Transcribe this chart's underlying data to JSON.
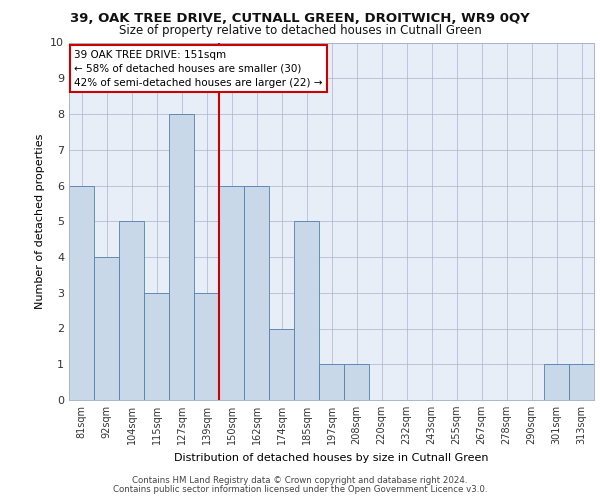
{
  "title1": "39, OAK TREE DRIVE, CUTNALL GREEN, DROITWICH, WR9 0QY",
  "title2": "Size of property relative to detached houses in Cutnall Green",
  "xlabel": "Distribution of detached houses by size in Cutnall Green",
  "ylabel": "Number of detached properties",
  "categories": [
    "81sqm",
    "92sqm",
    "104sqm",
    "115sqm",
    "127sqm",
    "139sqm",
    "150sqm",
    "162sqm",
    "174sqm",
    "185sqm",
    "197sqm",
    "208sqm",
    "220sqm",
    "232sqm",
    "243sqm",
    "255sqm",
    "267sqm",
    "278sqm",
    "290sqm",
    "301sqm",
    "313sqm"
  ],
  "values": [
    6,
    4,
    5,
    3,
    8,
    3,
    6,
    6,
    2,
    5,
    1,
    1,
    0,
    0,
    0,
    0,
    0,
    0,
    0,
    1,
    1
  ],
  "bar_color": "#c8d8e8",
  "bar_edge_color": "#5080b0",
  "subject_label": "39 OAK TREE DRIVE: 151sqm",
  "annotation_line1": "← 58% of detached houses are smaller (30)",
  "annotation_line2": "42% of semi-detached houses are larger (22) →",
  "vline_color": "#cc0000",
  "ylim": [
    0,
    10
  ],
  "yticks": [
    0,
    1,
    2,
    3,
    4,
    5,
    6,
    7,
    8,
    9,
    10
  ],
  "background_color": "#e8eef8",
  "footer1": "Contains HM Land Registry data © Crown copyright and database right 2024.",
  "footer2": "Contains public sector information licensed under the Open Government Licence v3.0."
}
